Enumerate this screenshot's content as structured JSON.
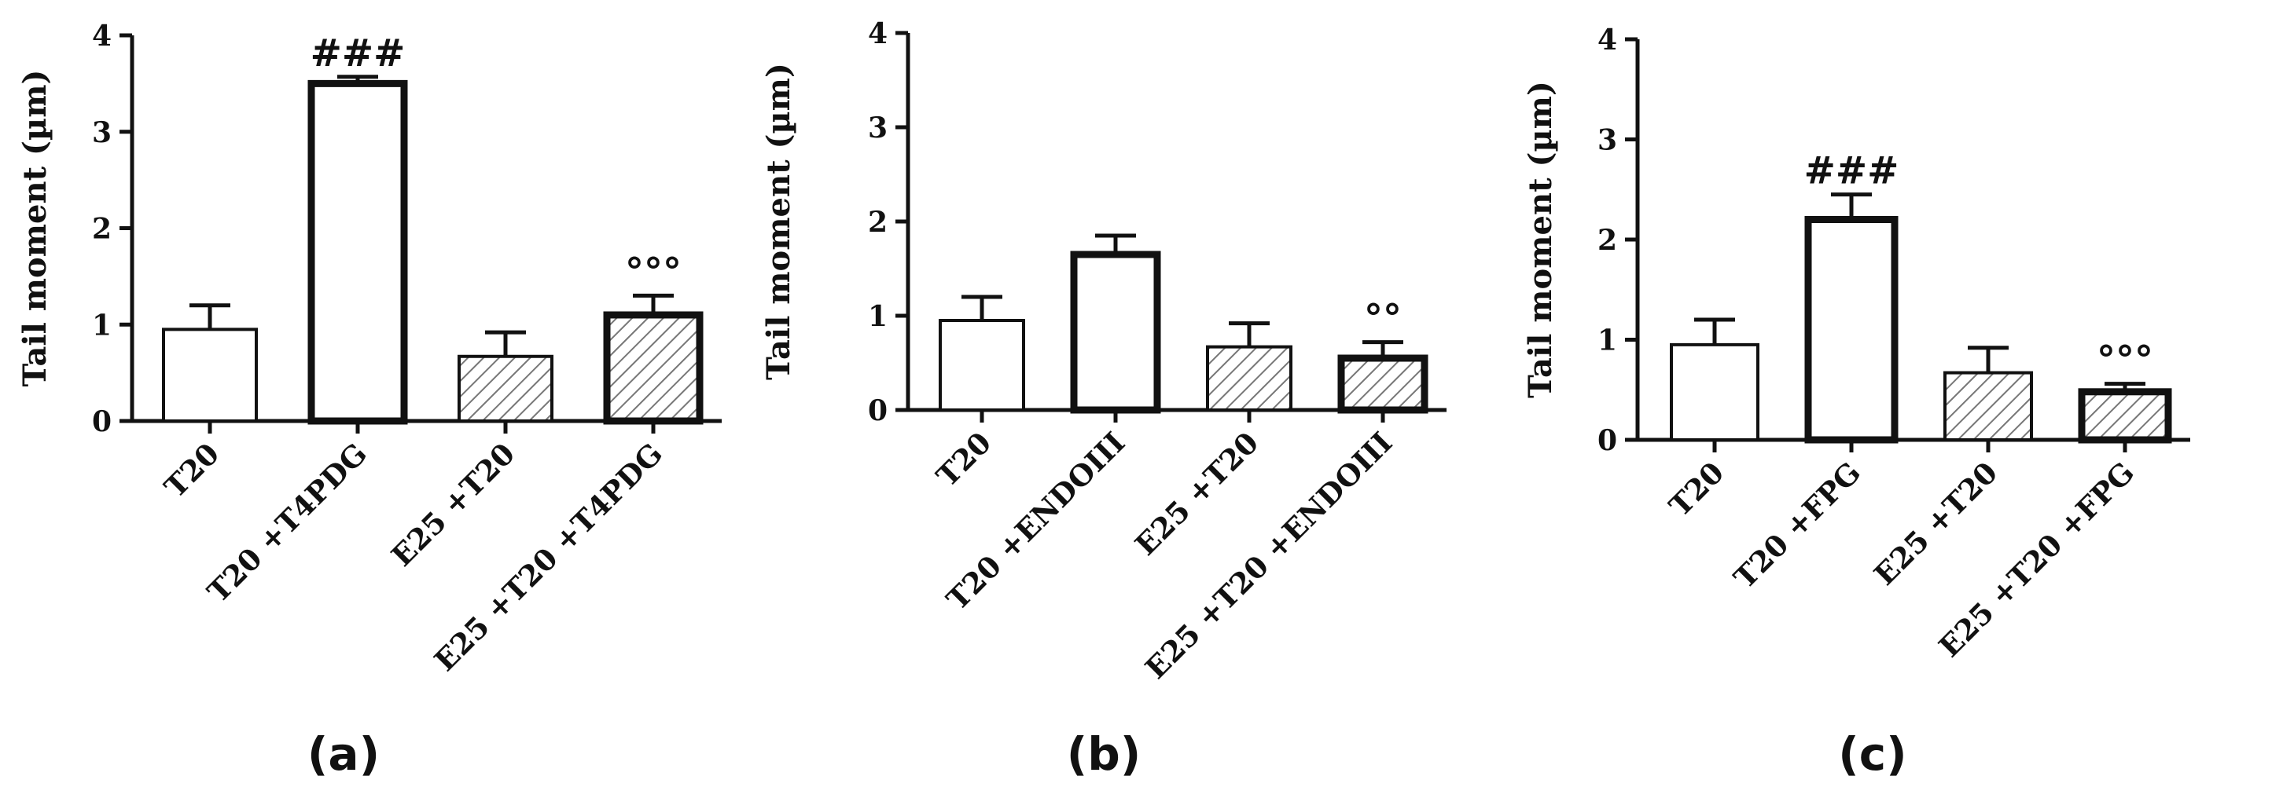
{
  "figure": {
    "panel_labels": [
      "(a)",
      "(b)",
      "(c)"
    ]
  },
  "chart_data": [
    {
      "type": "bar",
      "panel": "(a)",
      "ylabel": "Tail moment (µm)",
      "xlabel": "",
      "ylim": [
        0,
        4
      ],
      "yticks": [
        "0",
        "1",
        "2",
        "3",
        "4"
      ],
      "categories": [
        "T20",
        "T20 +T4PDG",
        "E25 +T20",
        "E25 +T20 +T4PDG"
      ],
      "values": [
        0.95,
        3.5,
        0.67,
        1.1
      ],
      "errors": [
        0.25,
        0.07,
        0.25,
        0.2
      ],
      "fill": [
        "white",
        "white",
        "hatched",
        "hatched"
      ],
      "bold_outline": [
        false,
        true,
        false,
        true
      ],
      "annotations": [
        "",
        "###",
        "",
        "°°°"
      ]
    },
    {
      "type": "bar",
      "panel": "(b)",
      "ylabel": "Tail moment (µm)",
      "xlabel": "",
      "ylim": [
        0,
        4
      ],
      "yticks": [
        "0",
        "1",
        "2",
        "3",
        "4"
      ],
      "categories": [
        "T20",
        "T20 +ENDOIII",
        "E25 +T20",
        "E25 +T20 +ENDOIII"
      ],
      "values": [
        0.95,
        1.65,
        0.67,
        0.55
      ],
      "errors": [
        0.25,
        0.2,
        0.25,
        0.17
      ],
      "fill": [
        "white",
        "white",
        "hatched",
        "hatched"
      ],
      "bold_outline": [
        false,
        true,
        false,
        true
      ],
      "annotations": [
        "",
        "",
        "",
        "°°"
      ]
    },
    {
      "type": "bar",
      "panel": "(c)",
      "ylabel": "Tail moment (µm)",
      "xlabel": "",
      "ylim": [
        0,
        4
      ],
      "yticks": [
        "0",
        "1",
        "2",
        "3",
        "4"
      ],
      "categories": [
        "T20",
        "T20 +FPG",
        "E25 +T20",
        "E25 +T20 +FPG"
      ],
      "values": [
        0.95,
        2.2,
        0.67,
        0.48
      ],
      "errors": [
        0.25,
        0.25,
        0.25,
        0.08
      ],
      "fill": [
        "white",
        "white",
        "hatched",
        "hatched"
      ],
      "bold_outline": [
        false,
        true,
        false,
        true
      ],
      "annotations": [
        "",
        "###",
        "",
        "°°°"
      ]
    }
  ]
}
